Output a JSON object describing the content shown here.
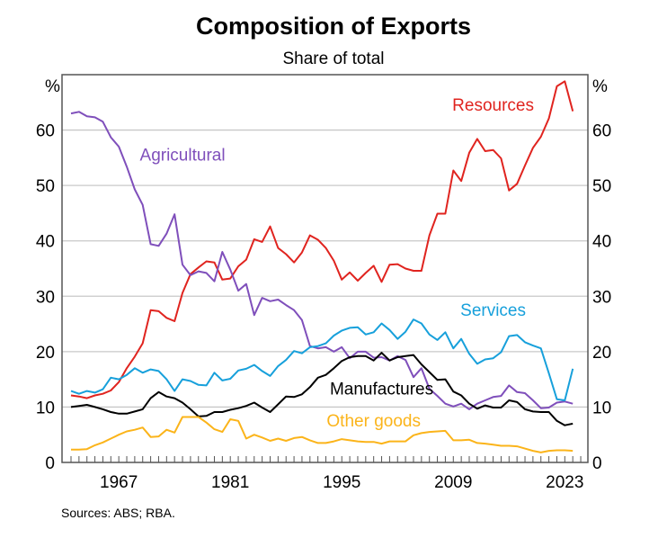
{
  "chart_data": {
    "type": "line",
    "title": "Composition of Exports",
    "subtitle": "Share of total",
    "xlabel": "",
    "ylabel": "%",
    "ylabel_right": "%",
    "ylim": [
      0,
      70
    ],
    "xlim": [
      1960,
      2025
    ],
    "yticks": [
      0,
      10,
      20,
      30,
      40,
      50,
      60
    ],
    "ytick_labels": [
      "0",
      "10",
      "20",
      "30",
      "40",
      "50",
      "60"
    ],
    "xtick_labels": [
      "1967",
      "1981",
      "1995",
      "2009",
      "2023"
    ],
    "xtick_values": [
      1967,
      1981,
      1995,
      2009,
      2023
    ],
    "grid": true,
    "legend": "inline labels",
    "x": [
      1961,
      1962,
      1963,
      1964,
      1965,
      1966,
      1967,
      1968,
      1969,
      1970,
      1971,
      1972,
      1973,
      1974,
      1975,
      1976,
      1977,
      1978,
      1979,
      1980,
      1981,
      1982,
      1983,
      1984,
      1985,
      1986,
      1987,
      1988,
      1989,
      1990,
      1991,
      1992,
      1993,
      1994,
      1995,
      1996,
      1997,
      1998,
      1999,
      2000,
      2001,
      2002,
      2003,
      2004,
      2005,
      2006,
      2007,
      2008,
      2009,
      2010,
      2011,
      2012,
      2013,
      2014,
      2015,
      2016,
      2017,
      2018,
      2019,
      2020,
      2021,
      2022,
      2023,
      2024
    ],
    "series": [
      {
        "name": "Resources",
        "color": "#e0241f",
        "values": [
          12.1,
          11.9,
          11.6,
          12.1,
          12.4,
          13.0,
          14.5,
          17.0,
          19.1,
          21.5,
          27.5,
          27.3,
          26.1,
          25.5,
          30.6,
          34.0,
          35.2,
          36.3,
          36.1,
          33.0,
          33.2,
          35.4,
          36.6,
          40.3,
          39.8,
          42.6,
          38.7,
          37.6,
          36.1,
          37.9,
          41.0,
          40.2,
          38.7,
          36.4,
          33.0,
          34.3,
          32.8,
          34.2,
          35.5,
          32.6,
          35.7,
          35.8,
          35.0,
          34.6,
          34.6,
          41.0,
          44.9,
          44.9,
          52.7,
          50.8,
          55.9,
          58.4,
          56.2,
          56.4,
          54.9,
          49.1,
          50.3,
          53.6,
          56.8,
          58.8,
          62.1,
          67.9,
          68.8,
          63.4
        ]
      },
      {
        "name": "Agricultural",
        "color": "#7f4fbb",
        "values": [
          63.0,
          63.3,
          62.5,
          62.3,
          61.5,
          58.7,
          57.0,
          53.4,
          49.3,
          46.5,
          39.4,
          39.1,
          41.3,
          44.8,
          35.7,
          33.8,
          34.5,
          34.2,
          32.7,
          38.0,
          34.8,
          31.0,
          32.2,
          26.6,
          29.7,
          29.1,
          29.4,
          28.4,
          27.5,
          25.7,
          21.0,
          20.6,
          20.8,
          20.0,
          20.8,
          18.8,
          20.0,
          20.0,
          18.9,
          19.0,
          18.4,
          19.2,
          18.5,
          15.4,
          17.0,
          13.3,
          12.0,
          10.6,
          10.1,
          10.6,
          9.6,
          10.6,
          11.2,
          11.8,
          12.0,
          13.9,
          12.7,
          12.5,
          11.2,
          9.8,
          9.9,
          10.8,
          11.0,
          10.6
        ]
      },
      {
        "name": "Services",
        "color": "#17a0db",
        "values": [
          12.9,
          12.4,
          12.9,
          12.6,
          13.2,
          15.3,
          15.0,
          15.8,
          17.0,
          16.2,
          16.8,
          16.5,
          15.0,
          12.9,
          15.0,
          14.7,
          14.0,
          13.9,
          16.2,
          14.8,
          15.1,
          16.6,
          16.9,
          17.6,
          16.5,
          15.6,
          17.4,
          18.5,
          20.1,
          19.7,
          20.8,
          21.0,
          21.5,
          22.9,
          23.8,
          24.3,
          24.4,
          23.1,
          23.5,
          25.1,
          23.9,
          22.3,
          23.6,
          25.8,
          25.1,
          23.1,
          22.1,
          23.5,
          20.6,
          22.3,
          19.6,
          17.8,
          18.6,
          18.8,
          19.9,
          22.8,
          23.0,
          21.7,
          21.1,
          20.6,
          16.1,
          11.4,
          11.2,
          16.9
        ]
      },
      {
        "name": "Manufactures",
        "color": "#000000",
        "values": [
          10.0,
          10.2,
          10.4,
          10.0,
          9.6,
          9.1,
          8.8,
          8.8,
          9.2,
          9.6,
          11.6,
          12.7,
          11.9,
          11.6,
          10.8,
          9.6,
          8.3,
          8.4,
          9.1,
          9.1,
          9.5,
          9.8,
          10.2,
          10.8,
          9.9,
          9.1,
          10.5,
          11.9,
          11.8,
          12.3,
          13.6,
          15.3,
          15.8,
          17.0,
          18.3,
          19.0,
          19.2,
          19.2,
          18.4,
          19.8,
          18.4,
          19.0,
          19.2,
          19.4,
          17.7,
          16.3,
          14.9,
          15.0,
          12.8,
          12.1,
          10.6,
          9.7,
          10.3,
          9.9,
          9.9,
          11.2,
          10.9,
          9.6,
          9.2,
          9.1,
          9.1,
          7.5,
          6.7,
          7.0
        ]
      },
      {
        "name": "Other goods",
        "color": "#fbb41a",
        "values": [
          2.3,
          2.3,
          2.4,
          3.1,
          3.6,
          4.3,
          5.0,
          5.6,
          5.9,
          6.3,
          4.6,
          4.7,
          5.9,
          5.4,
          8.2,
          8.2,
          8.2,
          7.2,
          6.0,
          5.5,
          7.8,
          7.5,
          4.3,
          5.0,
          4.5,
          3.9,
          4.3,
          3.9,
          4.4,
          4.6,
          4.0,
          3.5,
          3.5,
          3.8,
          4.2,
          4.0,
          3.8,
          3.7,
          3.7,
          3.4,
          3.8,
          3.8,
          3.8,
          4.9,
          5.3,
          5.5,
          5.6,
          5.7,
          4.0,
          4.0,
          4.1,
          3.5,
          3.4,
          3.2,
          3.0,
          3.0,
          2.9,
          2.5,
          2.1,
          1.8,
          2.1,
          2.2,
          2.2,
          2.1
        ]
      }
    ],
    "annotations": [
      {
        "text": "Resources",
        "series": "Resources",
        "at": [
          2014,
          63.5
        ]
      },
      {
        "text": "Agricultural",
        "series": "Agricultural",
        "at": [
          1975,
          54.5
        ]
      },
      {
        "text": "Services",
        "series": "Services",
        "at": [
          2014,
          26.5
        ]
      },
      {
        "text": "Manufactures",
        "series": "Manufactures",
        "at": [
          2000,
          12.3
        ]
      },
      {
        "text": "Other goods",
        "series": "Other goods",
        "at": [
          1999,
          6.5
        ]
      }
    ]
  },
  "source": "Sources: ABS; RBA."
}
